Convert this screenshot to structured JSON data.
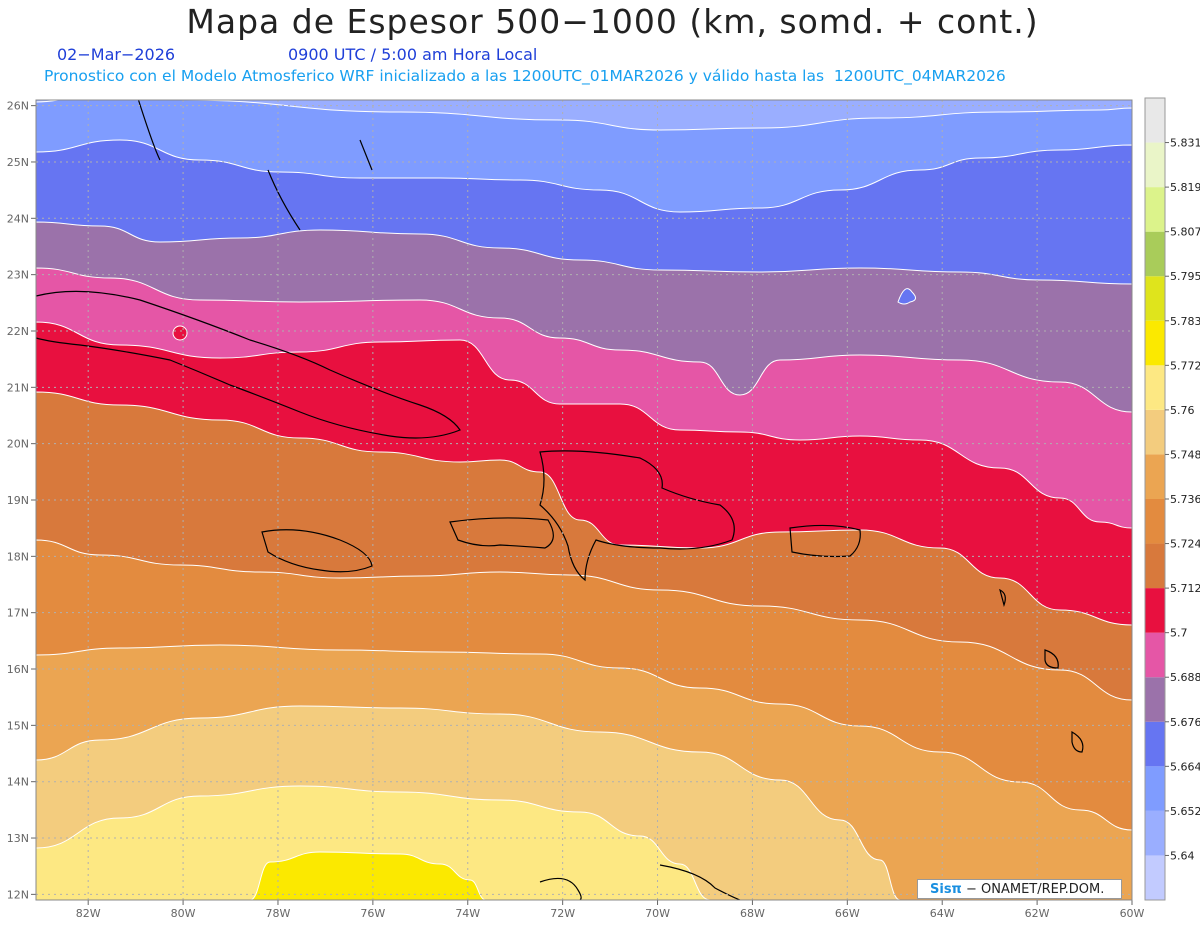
{
  "header": {
    "title": "Mapa de Espesor 500−1000 (km, somd. + cont.)",
    "date": "02−Mar−2026",
    "time": "0900 UTC / 5:00 am Hora Local",
    "info": "Pronostico con el Modelo Atmosferico WRF inicializado a las 1200UTC_01MAR2026 y válido hasta las  1200UTC_04MAR2026"
  },
  "map": {
    "lon_range": [
      -83.1,
      -60.0
    ],
    "lat_range": [
      11.9,
      26.1
    ],
    "lon_ticks": [
      {
        "value": -82,
        "label": "82W"
      },
      {
        "value": -80,
        "label": "80W"
      },
      {
        "value": -78,
        "label": "78W"
      },
      {
        "value": -76,
        "label": "76W"
      },
      {
        "value": -74,
        "label": "74W"
      },
      {
        "value": -72,
        "label": "72W"
      },
      {
        "value": -70,
        "label": "70W"
      },
      {
        "value": -68,
        "label": "68W"
      },
      {
        "value": -66,
        "label": "66W"
      },
      {
        "value": -64,
        "label": "64W"
      },
      {
        "value": -62,
        "label": "62W"
      },
      {
        "value": -60,
        "label": "60W"
      }
    ],
    "lat_ticks": [
      {
        "value": 12,
        "label": "12N"
      },
      {
        "value": 13,
        "label": "13N"
      },
      {
        "value": 14,
        "label": "14N"
      },
      {
        "value": 15,
        "label": "15N"
      },
      {
        "value": 16,
        "label": "16N"
      },
      {
        "value": 17,
        "label": "17N"
      },
      {
        "value": 18,
        "label": "18N"
      },
      {
        "value": 19,
        "label": "19N"
      },
      {
        "value": 20,
        "label": "20N"
      },
      {
        "value": 21,
        "label": "21N"
      },
      {
        "value": 22,
        "label": "22N"
      },
      {
        "value": 23,
        "label": "23N"
      },
      {
        "value": 24,
        "label": "24N"
      },
      {
        "value": 25,
        "label": "25N"
      },
      {
        "value": 26,
        "label": "26N"
      }
    ],
    "gridlines": true,
    "contour_line_color": "#ffffff",
    "coast_color": "#000000"
  },
  "colorbar": {
    "colors": [
      "#c2cbff",
      "#9aaeff",
      "#7f9cff",
      "#6675f2",
      "#9b72aa",
      "#e556a6",
      "#e8103f",
      "#d8793c",
      "#e38b3f",
      "#eba552",
      "#f3cc7e",
      "#fde883",
      "#fbe900",
      "#dfe41c",
      "#a9cc5a",
      "#dcf38b",
      "#eaf5c8",
      "#e8e8e8"
    ],
    "labels": [
      "5.64",
      "5.652",
      "5.664",
      "5.676",
      "5.688",
      "5.7",
      "5.712",
      "5.724",
      "5.736",
      "5.748",
      "5.76",
      "5.772",
      "5.783",
      "5.795",
      "5.807",
      "5.819",
      "5.831"
    ]
  },
  "credit": {
    "brand": "Sisπ",
    "text": " − ONAMET/REP.DOM."
  }
}
